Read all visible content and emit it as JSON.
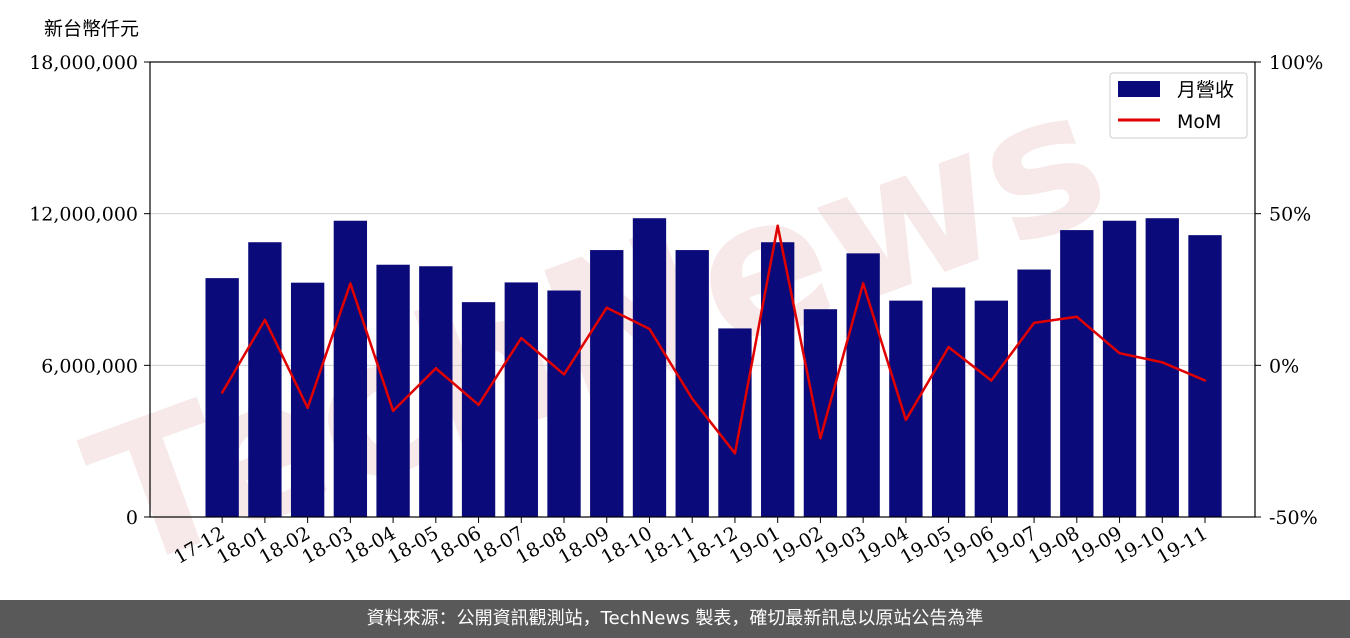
{
  "y_unit_label": "新台幣仟元",
  "footer_text": "資料來源：公開資訊觀測站，TechNews 製表，確切最新訊息以原站公告為準",
  "watermark_text": "TechNews",
  "colors": {
    "bar": "#0a0a7a",
    "line": "#e00000",
    "footer_bg": "#595959"
  },
  "chart_data": {
    "type": "bar",
    "categories": [
      "17-12",
      "18-01",
      "18-02",
      "18-03",
      "18-04",
      "18-05",
      "18-06",
      "18-07",
      "18-08",
      "18-09",
      "18-10",
      "18-11",
      "18-12",
      "19-01",
      "19-02",
      "19-03",
      "19-04",
      "19-05",
      "19-06",
      "19-07",
      "19-08",
      "19-09",
      "19-10",
      "19-11"
    ],
    "series": [
      {
        "name": "月營收",
        "type": "bar",
        "axis": "left",
        "values": [
          9450000,
          10870000,
          9270000,
          11720000,
          9980000,
          9920000,
          8500000,
          9280000,
          8960000,
          10560000,
          11820000,
          10560000,
          7460000,
          10870000,
          8220000,
          10430000,
          8560000,
          9080000,
          8560000,
          9790000,
          11350000,
          11720000,
          11820000,
          11150000
        ]
      },
      {
        "name": "MoM",
        "type": "line",
        "axis": "right",
        "values": [
          -9,
          15,
          -14,
          27,
          -15,
          -1,
          -13,
          9,
          -3,
          19,
          12,
          -11,
          -29,
          46,
          -24,
          27,
          -18,
          6,
          -5,
          14,
          16,
          4,
          1,
          -5
        ]
      }
    ],
    "ylim": [
      0,
      18000000
    ],
    "yticks": [
      "0",
      "6,000,000",
      "12,000,000",
      "18,000,000"
    ],
    "y2lim": [
      -50,
      100
    ],
    "y2ticks": [
      "-50%",
      "0%",
      "50%",
      "100%"
    ],
    "grid": "horizontal",
    "legend": "top-right"
  }
}
